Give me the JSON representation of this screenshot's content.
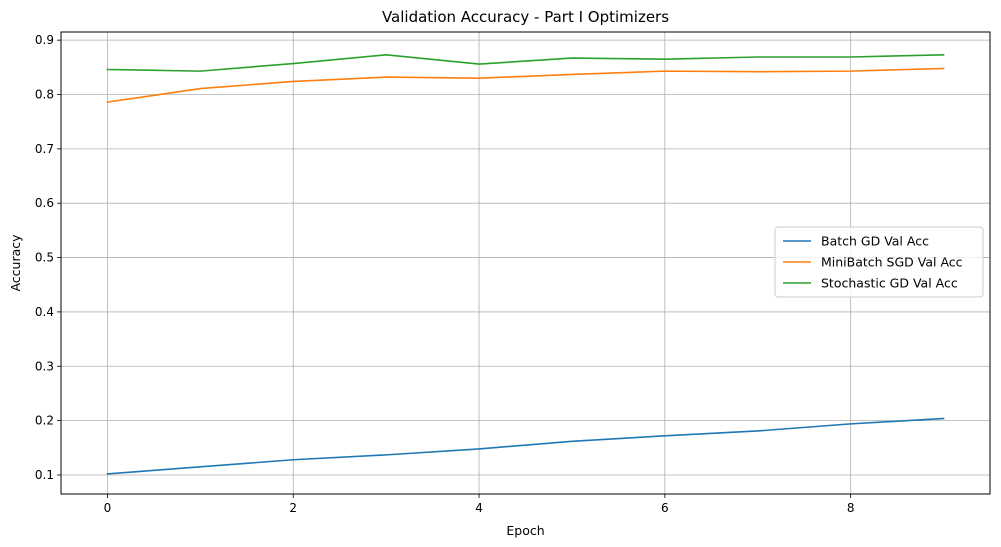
{
  "chart_data": {
    "type": "line",
    "title": "Validation Accuracy - Part I Optimizers",
    "xlabel": "Epoch",
    "ylabel": "Accuracy",
    "xlim": [
      -0.5,
      9.5
    ],
    "ylim": [
      0.065,
      0.915
    ],
    "xticks": [
      0,
      2,
      4,
      6,
      8
    ],
    "yticks": [
      0.1,
      0.2,
      0.3,
      0.4,
      0.5,
      0.6,
      0.7,
      0.8,
      0.9
    ],
    "xtick_labels": [
      "0",
      "2",
      "4",
      "6",
      "8"
    ],
    "ytick_labels": [
      "0.1",
      "0.2",
      "0.3",
      "0.4",
      "0.5",
      "0.6",
      "0.7",
      "0.8",
      "0.9"
    ],
    "grid": true,
    "legend_position": "center-right",
    "x": [
      0,
      1,
      2,
      3,
      4,
      5,
      6,
      7,
      8,
      9
    ],
    "series": [
      {
        "name": "Batch GD Val Acc",
        "color": "#1f77b4",
        "values": [
          0.102,
          0.115,
          0.128,
          0.137,
          0.148,
          0.162,
          0.172,
          0.181,
          0.194,
          0.204
        ]
      },
      {
        "name": "MiniBatch SGD Val Acc",
        "color": "#ff7f0e",
        "values": [
          0.786,
          0.811,
          0.824,
          0.832,
          0.83,
          0.837,
          0.843,
          0.842,
          0.843,
          0.848
        ]
      },
      {
        "name": "Stochastic GD Val Acc",
        "color": "#2ca02c",
        "values": [
          0.846,
          0.843,
          0.857,
          0.873,
          0.856,
          0.867,
          0.865,
          0.869,
          0.869,
          0.873
        ]
      }
    ]
  }
}
